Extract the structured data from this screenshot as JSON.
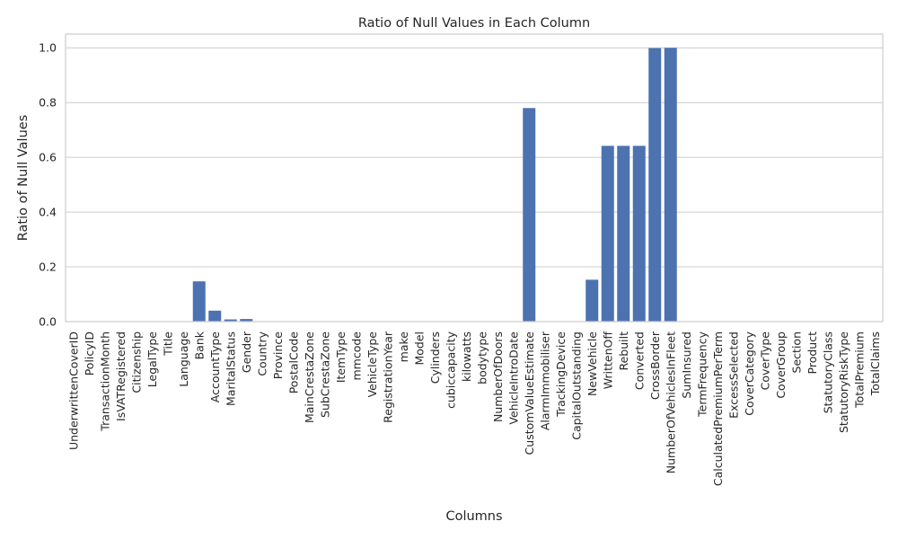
{
  "chart_data": {
    "type": "bar",
    "title": "Ratio of Null Values in Each Column",
    "xlabel": "Columns",
    "ylabel": "Ratio of Null Values",
    "ylim": [
      0,
      1.05
    ],
    "yticks": [
      0.0,
      0.2,
      0.4,
      0.6,
      0.8,
      1.0
    ],
    "ytick_labels": [
      "0.0",
      "0.2",
      "0.4",
      "0.6",
      "0.8",
      "1.0"
    ],
    "grid": true,
    "bar_color": "#4c72b0",
    "categories": [
      "UnderwrittenCoverID",
      "PolicyID",
      "TransactionMonth",
      "IsVATRegistered",
      "Citizenship",
      "LegalType",
      "Title",
      "Language",
      "Bank",
      "AccountType",
      "MaritalStatus",
      "Gender",
      "Country",
      "Province",
      "PostalCode",
      "MainCrestaZone",
      "SubCrestaZone",
      "ItemType",
      "mmcode",
      "VehicleType",
      "RegistrationYear",
      "make",
      "Model",
      "Cylinders",
      "cubiccapacity",
      "kilowatts",
      "bodytype",
      "NumberOfDoors",
      "VehicleIntroDate",
      "CustomValueEstimate",
      "AlarmImmobiliser",
      "TrackingDevice",
      "CapitalOutstanding",
      "NewVehicle",
      "WrittenOff",
      "Rebuilt",
      "Converted",
      "CrossBorder",
      "NumberOfVehiclesInFleet",
      "SumInsured",
      "TermFrequency",
      "CalculatedPremiumPerTerm",
      "ExcessSelected",
      "CoverCategory",
      "CoverType",
      "CoverGroup",
      "Section",
      "Product",
      "StatutoryClass",
      "StatutoryRiskType",
      "TotalPremium",
      "TotalClaims"
    ],
    "values": [
      0,
      0,
      0,
      0,
      0,
      0,
      0,
      0,
      0.147,
      0.04,
      0.008,
      0.0095,
      0,
      0,
      0,
      0,
      0,
      0,
      0.0005,
      0.0005,
      0,
      0.0005,
      0.0005,
      0.0005,
      0.0005,
      0.0005,
      0.0005,
      0.0005,
      0,
      0.78,
      0,
      0,
      2e-06,
      0.153,
      0.642,
      0.642,
      0.642,
      0.999,
      1.0,
      0,
      0,
      0,
      0,
      0,
      0,
      0,
      0,
      0,
      0,
      0,
      0,
      0
    ]
  }
}
